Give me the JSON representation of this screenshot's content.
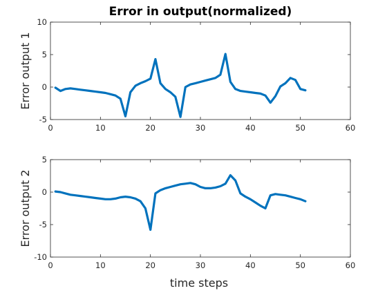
{
  "figure": {
    "title": "Error in output(normalized)"
  },
  "chart_data": [
    {
      "type": "line",
      "title": "Error in output(normalized)",
      "xlabel": "",
      "ylabel": "Error output 1",
      "xlim": [
        0,
        60
      ],
      "ylim": [
        -5,
        10
      ],
      "xticks": [
        0,
        10,
        20,
        30,
        40,
        50,
        60
      ],
      "yticks": [
        -5,
        0,
        5,
        10
      ],
      "grid": false,
      "color": "#0072bd",
      "series": [
        {
          "x": [
            1,
            2,
            3,
            4,
            5,
            6,
            7,
            8,
            9,
            10,
            11,
            12,
            13,
            14,
            15,
            16,
            17,
            18,
            19,
            20,
            21,
            22,
            23,
            24,
            25,
            26,
            27,
            28,
            29,
            30,
            31,
            32,
            33,
            34,
            35,
            36,
            37,
            38,
            39,
            40,
            41,
            42,
            43,
            44,
            45,
            46,
            47,
            48,
            49,
            50,
            51
          ],
          "values": [
            -0.1,
            -0.6,
            -0.3,
            -0.2,
            -0.3,
            -0.4,
            -0.5,
            -0.6,
            -0.7,
            -0.8,
            -0.9,
            -1.1,
            -1.3,
            -1.8,
            -4.5,
            -0.8,
            0.2,
            0.6,
            0.9,
            1.3,
            4.3,
            0.6,
            -0.3,
            -0.8,
            -1.5,
            -4.6,
            0.0,
            0.4,
            0.6,
            0.8,
            1.0,
            1.2,
            1.4,
            1.9,
            5.1,
            0.8,
            -0.3,
            -0.6,
            -0.7,
            -0.8,
            -0.9,
            -1.0,
            -1.3,
            -2.4,
            -1.4,
            0.1,
            0.6,
            1.4,
            1.1,
            -0.3,
            -0.5
          ]
        }
      ]
    },
    {
      "type": "line",
      "title": "",
      "xlabel": "time steps",
      "ylabel": "Error output 2",
      "xlim": [
        0,
        60
      ],
      "ylim": [
        -10,
        5
      ],
      "xticks": [
        0,
        10,
        20,
        30,
        40,
        50,
        60
      ],
      "yticks": [
        -10,
        -5,
        0,
        5
      ],
      "grid": false,
      "color": "#0072bd",
      "series": [
        {
          "x": [
            1,
            2,
            3,
            4,
            5,
            6,
            7,
            8,
            9,
            10,
            11,
            12,
            13,
            14,
            15,
            16,
            17,
            18,
            19,
            20,
            21,
            22,
            23,
            24,
            25,
            26,
            27,
            28,
            29,
            30,
            31,
            32,
            33,
            34,
            35,
            36,
            37,
            38,
            39,
            40,
            41,
            42,
            43,
            44,
            45,
            46,
            47,
            48,
            49,
            50,
            51
          ],
          "values": [
            0.1,
            0.0,
            -0.2,
            -0.4,
            -0.5,
            -0.6,
            -0.7,
            -0.8,
            -0.9,
            -1.0,
            -1.1,
            -1.1,
            -1.0,
            -0.8,
            -0.7,
            -0.8,
            -1.0,
            -1.4,
            -2.5,
            -5.8,
            -0.2,
            0.3,
            0.6,
            0.8,
            1.0,
            1.2,
            1.3,
            1.4,
            1.2,
            0.8,
            0.6,
            0.6,
            0.7,
            0.9,
            1.3,
            2.6,
            1.8,
            -0.2,
            -0.7,
            -1.1,
            -1.6,
            -2.1,
            -2.5,
            -0.5,
            -0.3,
            -0.4,
            -0.5,
            -0.7,
            -0.9,
            -1.1,
            -1.4
          ]
        }
      ]
    }
  ]
}
